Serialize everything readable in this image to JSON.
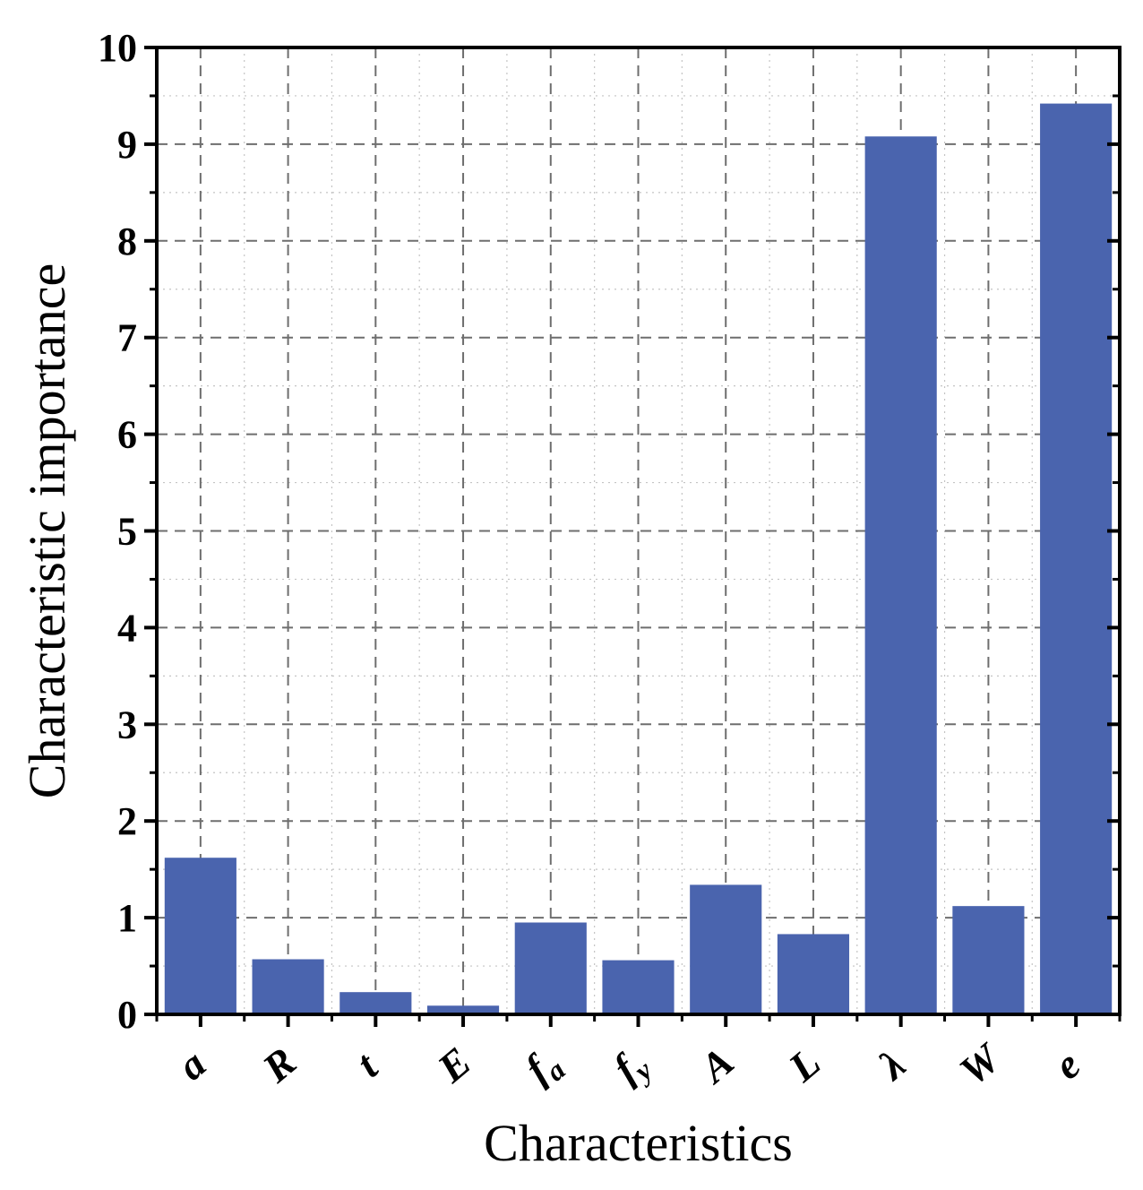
{
  "chart_data": {
    "type": "bar",
    "title": "",
    "xlabel": "Characteristics",
    "ylabel": "Characteristic importance",
    "categories": [
      "a",
      "R",
      "t",
      "E",
      "fa",
      "fy",
      "A",
      "L",
      "λ",
      "W",
      "e"
    ],
    "category_labels": [
      {
        "main": "a",
        "sub": ""
      },
      {
        "main": "R",
        "sub": ""
      },
      {
        "main": "t",
        "sub": ""
      },
      {
        "main": "E",
        "sub": ""
      },
      {
        "main": "f",
        "sub": "a"
      },
      {
        "main": "f",
        "sub": "y"
      },
      {
        "main": "A",
        "sub": ""
      },
      {
        "main": "L",
        "sub": ""
      },
      {
        "main": "λ",
        "sub": ""
      },
      {
        "main": "W",
        "sub": ""
      },
      {
        "main": "e",
        "sub": ""
      }
    ],
    "values": [
      1.62,
      0.57,
      0.23,
      0.09,
      0.95,
      0.56,
      1.34,
      0.83,
      9.08,
      1.12,
      9.42
    ],
    "ylim": [
      0,
      10
    ],
    "yticks": [
      0,
      1,
      2,
      3,
      4,
      5,
      6,
      7,
      8,
      9,
      10
    ],
    "grid": true,
    "bar_color": "#4a64ae"
  }
}
